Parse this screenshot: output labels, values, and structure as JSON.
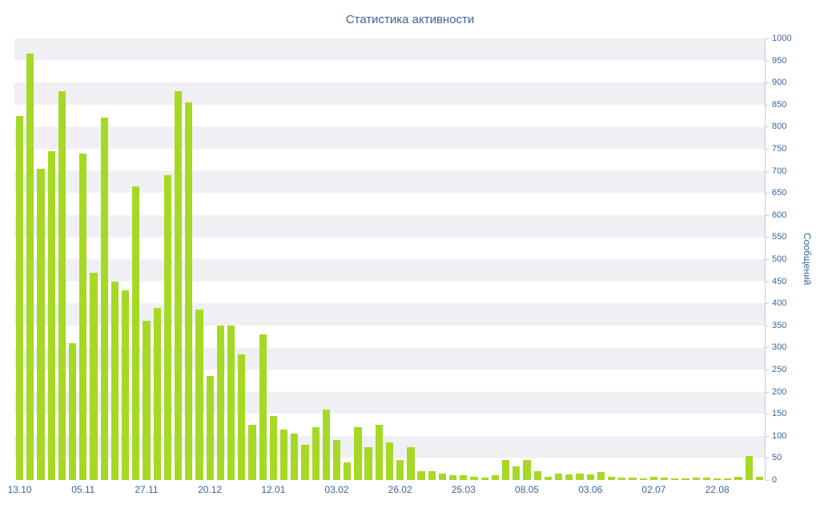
{
  "chart_data": {
    "type": "bar",
    "title": "Статистика активности",
    "xlabel": "",
    "ylabel": "Сообщений",
    "ylim": [
      0,
      1000
    ],
    "y_tick_step": 50,
    "y_tick_labels": [
      "1000",
      "950",
      "900",
      "850",
      "800",
      "750",
      "700",
      "650",
      "600",
      "550",
      "500",
      "450",
      "400",
      "350",
      "300",
      "250",
      "200",
      "150",
      "100",
      "50",
      "0"
    ],
    "x_tick_labels": [
      "13.10",
      "05.11",
      "27.11",
      "20.12",
      "12.01",
      "03.02",
      "26.02",
      "25.03",
      "08.05",
      "03.06",
      "02.07",
      "22.08"
    ],
    "x_tick_every": 6,
    "values": [
      825,
      965,
      705,
      745,
      880,
      310,
      740,
      470,
      820,
      450,
      430,
      665,
      360,
      390,
      690,
      880,
      855,
      385,
      235,
      350,
      350,
      285,
      125,
      330,
      145,
      115,
      105,
      80,
      120,
      160,
      90,
      40,
      120,
      75,
      125,
      85,
      45,
      75,
      20,
      20,
      15,
      10,
      10,
      8,
      5,
      10,
      45,
      30,
      45,
      20,
      8,
      15,
      12,
      15,
      12,
      18,
      8,
      5,
      5,
      3,
      8,
      5,
      3,
      3,
      5,
      5,
      3,
      3,
      8,
      55,
      8
    ],
    "grid": "horizontal-striped-bands",
    "legend": "none",
    "colors": {
      "bar": "#a6d826",
      "label": "#3c6499",
      "stripe": "#f0f0f4",
      "axis": "#c2cbdb"
    }
  }
}
